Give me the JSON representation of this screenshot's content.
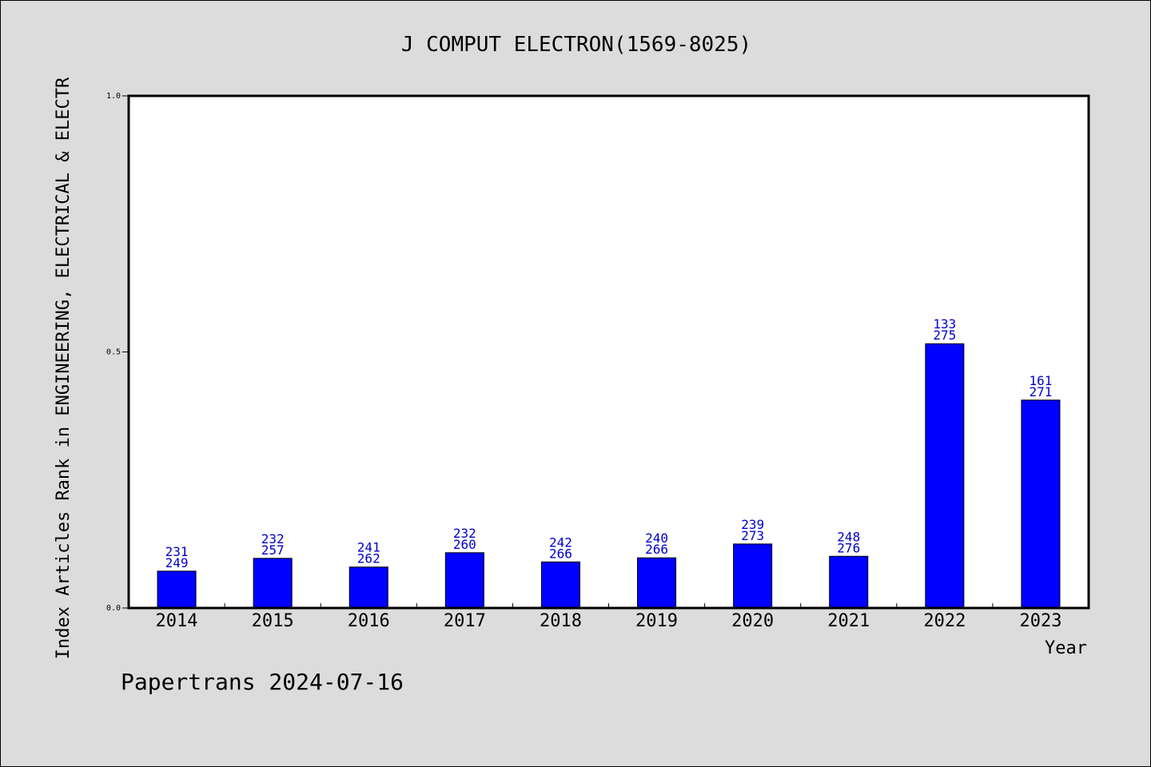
{
  "chart_data": {
    "type": "bar",
    "title": "J COMPUT ELECTRON(1569-8025)",
    "xlabel": "Year",
    "ylabel": "Index Articles Rank in ENGINEERING, ELECTRICAL & ELECTR",
    "ylim": [
      0,
      1.0
    ],
    "yticks": [
      "0.0",
      "0.5",
      "1.0"
    ],
    "categories": [
      "2014",
      "2015",
      "2016",
      "2017",
      "2018",
      "2019",
      "2020",
      "2021",
      "2022",
      "2023"
    ],
    "values": [
      0.072,
      0.097,
      0.08,
      0.108,
      0.09,
      0.098,
      0.125,
      0.101,
      0.516,
      0.406
    ],
    "labels_top": [
      "231",
      "232",
      "241",
      "232",
      "242",
      "240",
      "239",
      "248",
      "133",
      "161"
    ],
    "labels_bottom": [
      "249",
      "257",
      "262",
      "260",
      "266",
      "266",
      "273",
      "276",
      "275",
      "271"
    ],
    "bar_color": "#0000ff",
    "label_color": "#0000cc",
    "grid": false,
    "legend": "none"
  },
  "footer": {
    "text": "Papertrans 2024-07-16"
  },
  "colors": {
    "background": "#dcdcdc",
    "plot_background": "#ffffff"
  }
}
